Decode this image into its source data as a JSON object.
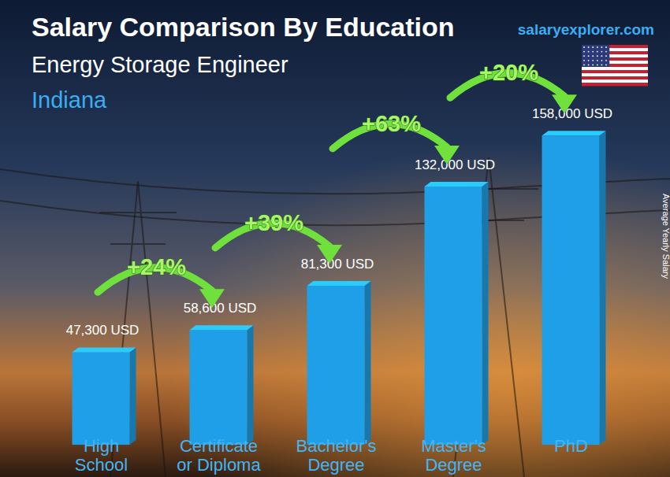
{
  "chart_data": {
    "type": "bar",
    "title": "Salary Comparison By Education",
    "subtitle": "Energy Storage Engineer",
    "annotations": [
      "Indiana",
      "salaryexplorer.com"
    ],
    "ylabel": "Average Yearly Salary",
    "categories": [
      "High School",
      "Certificate or Diploma",
      "Bachelor's Degree",
      "Master's Degree",
      "PhD"
    ],
    "values": [
      47300,
      58600,
      81300,
      132000,
      158000
    ],
    "value_labels": [
      "47,300 USD",
      "58,600 USD",
      "81,300 USD",
      "132,000 USD",
      "158,000 USD"
    ],
    "changes": [
      {
        "value": 24,
        "label": "+24%"
      },
      {
        "value": 39,
        "label": "+39%"
      },
      {
        "value": 63,
        "label": "+63%"
      },
      {
        "value": 20,
        "label": "+20%"
      }
    ],
    "color": "#1f9fe8",
    "ylim": [
      0,
      175000
    ],
    "data_labels": true,
    "tick_labels": "x"
  }
}
